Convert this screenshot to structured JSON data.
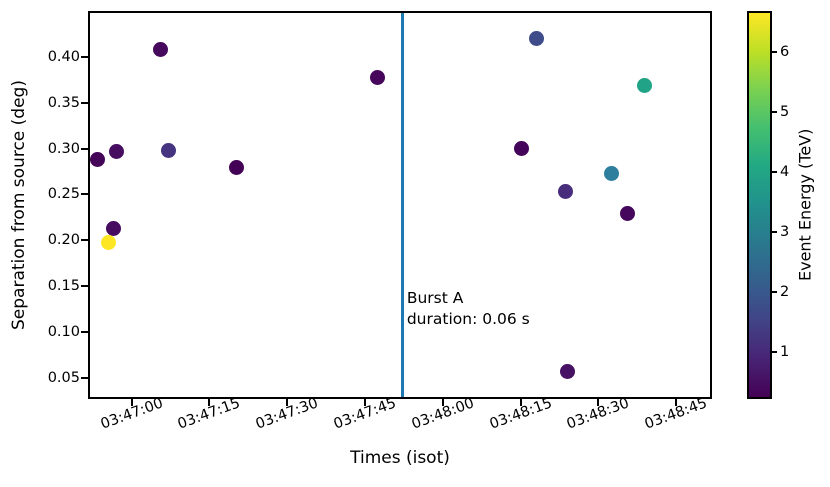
{
  "figure": {
    "xlabel": "Times (isot)",
    "ylabel": "Separation from source (deg)"
  },
  "colors": {
    "background": "#ffffff",
    "spine": "#000000",
    "burst_line": "#1f77b4",
    "viridis_stops": [
      "#440154",
      "#482475",
      "#414487",
      "#355f8d",
      "#2a788e",
      "#21918c",
      "#22a884",
      "#44bf70",
      "#7ad151",
      "#bddf26",
      "#fde725"
    ]
  },
  "chart_data": {
    "type": "scatter",
    "title": "",
    "xlabel": "Times (isot)",
    "ylabel": "Separation from source (deg)",
    "grid": false,
    "x_axis": {
      "start": "03:46:52.0",
      "end": "03:48:51.5",
      "ticks": [
        "03:47:00",
        "03:47:15",
        "03:47:30",
        "03:47:45",
        "03:48:00",
        "03:48:15",
        "03:48:30",
        "03:48:45"
      ],
      "tick_rotation_deg": 20
    },
    "y_axis": {
      "min": 0.029,
      "max": 0.448,
      "ticks": [
        "0.05",
        "0.10",
        "0.15",
        "0.20",
        "0.25",
        "0.30",
        "0.35",
        "0.40"
      ]
    },
    "colorbar": {
      "label": "Event Energy (TeV)",
      "min": 0.25,
      "max": 6.65,
      "ticks": [
        "1",
        "2",
        "3",
        "4",
        "5",
        "6"
      ],
      "colormap": "viridis"
    },
    "burst_line": {
      "time": "03:47:52.3",
      "color": "#1f77b4",
      "label": [
        "Burst A",
        "duration: 0.06 s"
      ]
    },
    "points": [
      {
        "time": "03:46:53.5",
        "separation_deg": 0.288,
        "energy_tev": 0.35,
        "color": "#440457"
      },
      {
        "time": "03:46:57.2",
        "separation_deg": 0.297,
        "energy_tev": 0.5,
        "color": "#470d60"
      },
      {
        "time": "03:47:07.2",
        "separation_deg": 0.298,
        "energy_tev": 1.3,
        "color": "#463480"
      },
      {
        "time": "03:47:05.5",
        "separation_deg": 0.408,
        "energy_tev": 0.45,
        "color": "#46095d"
      },
      {
        "time": "03:47:20.3",
        "separation_deg": 0.279,
        "energy_tev": 0.3,
        "color": "#440256"
      },
      {
        "time": "03:46:56.6",
        "separation_deg": 0.213,
        "energy_tev": 0.55,
        "color": "#470c5f"
      },
      {
        "time": "03:46:55.5",
        "separation_deg": 0.198,
        "energy_tev": 6.6,
        "color": "#fde725"
      },
      {
        "time": "03:47:47.5",
        "separation_deg": 0.378,
        "energy_tev": 0.4,
        "color": "#45065b"
      },
      {
        "time": "03:48:18.1",
        "separation_deg": 0.42,
        "energy_tev": 2.0,
        "color": "#3e4c8a"
      },
      {
        "time": "03:48:38.8",
        "separation_deg": 0.369,
        "energy_tev": 4.3,
        "color": "#20a386"
      },
      {
        "time": "03:48:15.1",
        "separation_deg": 0.3,
        "energy_tev": 0.35,
        "color": "#43045a"
      },
      {
        "time": "03:48:32.5",
        "separation_deg": 0.273,
        "energy_tev": 3.1,
        "color": "#2e7f9e"
      },
      {
        "time": "03:48:23.6",
        "separation_deg": 0.253,
        "energy_tev": 1.1,
        "color": "#482d7d"
      },
      {
        "time": "03:48:35.6",
        "separation_deg": 0.229,
        "energy_tev": 0.4,
        "color": "#45075c"
      },
      {
        "time": "03:48:24.1",
        "separation_deg": 0.057,
        "energy_tev": 0.6,
        "color": "#471164"
      }
    ]
  }
}
